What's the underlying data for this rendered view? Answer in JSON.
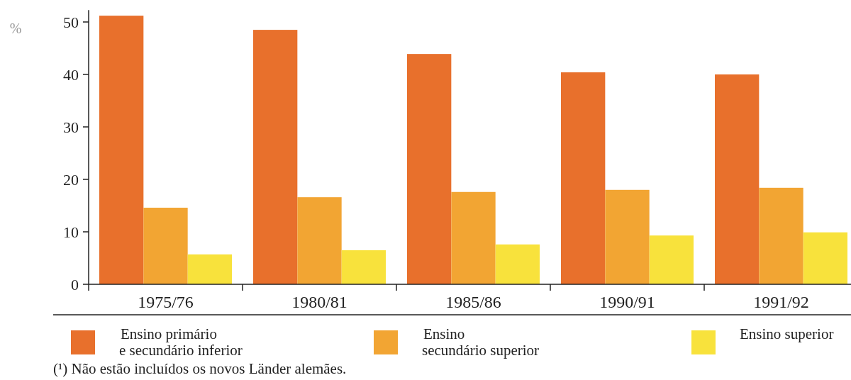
{
  "chart_data": {
    "type": "bar",
    "ylabel": "%",
    "categories": [
      "1975/76",
      "1980/81",
      "1985/86",
      "1990/91",
      "1991/92"
    ],
    "series": [
      {
        "name": "Ensino primário e secundário inferior",
        "color": "#e8702c",
        "values": [
          51.2,
          48.5,
          43.9,
          40.4,
          40.0
        ]
      },
      {
        "name": "Ensino secundário superior",
        "color": "#f2a533",
        "values": [
          14.6,
          16.6,
          17.6,
          18.0,
          18.4
        ]
      },
      {
        "name": "Ensino superior",
        "color": "#f8e23c",
        "values": [
          5.7,
          6.5,
          7.6,
          9.3,
          9.9
        ]
      }
    ],
    "ylim": [
      0,
      52
    ],
    "yticks": [
      0,
      10,
      20,
      30,
      40,
      50
    ],
    "grid": false,
    "legend": "bottom",
    "annotations": [
      "(¹) Não estão incluídos os novos Länder alemães."
    ]
  }
}
